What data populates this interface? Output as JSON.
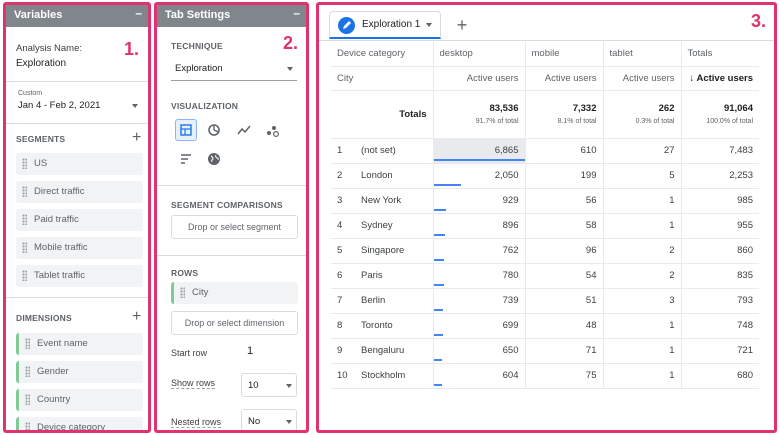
{
  "variables": {
    "title": "Variables",
    "minimize": "–",
    "analysis_label": "Analysis Name:",
    "analysis_name": "Exploration",
    "date_label": "Custom",
    "date_range": "Jan 4 - Feb 2, 2021",
    "segments_label": "SEGMENTS",
    "segments": [
      "US",
      "Direct traffic",
      "Paid traffic",
      "Mobile traffic",
      "Tablet traffic"
    ],
    "dimensions_label": "DIMENSIONS",
    "dimensions": [
      "Event name",
      "Gender",
      "Country",
      "Device category"
    ],
    "plus": "+"
  },
  "tab_settings": {
    "title": "Tab Settings",
    "minimize": "–",
    "technique_label": "TECHNIQUE",
    "technique_value": "Exploration",
    "visualization_label": "VISUALIZATION",
    "visualizations": [
      "table-icon",
      "donut-icon",
      "line-icon",
      "scatter-icon",
      "bar-icon",
      "geo-icon"
    ],
    "segment_comparisons_label": "SEGMENT COMPARISONS",
    "segment_drop": "Drop or select segment",
    "rows_label": "ROWS",
    "row_dimension": "City",
    "dimension_drop": "Drop or select dimension",
    "start_row_label": "Start row",
    "start_row_value": "1",
    "show_rows_label": "Show rows",
    "show_rows_value": "10",
    "nested_rows_label": "Nested rows",
    "nested_rows_value": "No"
  },
  "labels": {
    "one": "1.",
    "two": "2.",
    "three": "3."
  },
  "exploration": {
    "tab_label": "Exploration 1",
    "add_tab": "+",
    "dim_header": "Device category",
    "row_header": "City",
    "columns": [
      "desktop",
      "mobile",
      "tablet",
      "Totals"
    ],
    "metric_headers": [
      "Active users",
      "Active users",
      "Active users",
      "↓ Active users"
    ],
    "totals_label": "Totals",
    "totals": [
      {
        "value": "83,536",
        "pct": "91.7% of total"
      },
      {
        "value": "7,332",
        "pct": "8.1% of total"
      },
      {
        "value": "262",
        "pct": "0.3% of total"
      },
      {
        "value": "91,064",
        "pct": "100.0% of total"
      }
    ],
    "rows": [
      {
        "n": "1",
        "city": "(not set)",
        "vals": [
          "6,865",
          "610",
          "27",
          "7,483"
        ],
        "bar": 1.0
      },
      {
        "n": "2",
        "city": "London",
        "vals": [
          "2,050",
          "199",
          "5",
          "2,253"
        ],
        "bar": 0.299
      },
      {
        "n": "3",
        "city": "New York",
        "vals": [
          "929",
          "56",
          "1",
          "985"
        ],
        "bar": 0.135
      },
      {
        "n": "4",
        "city": "Sydney",
        "vals": [
          "896",
          "58",
          "1",
          "955"
        ],
        "bar": 0.131
      },
      {
        "n": "5",
        "city": "Singapore",
        "vals": [
          "762",
          "96",
          "2",
          "860"
        ],
        "bar": 0.111
      },
      {
        "n": "6",
        "city": "Paris",
        "vals": [
          "780",
          "54",
          "2",
          "835"
        ],
        "bar": 0.114
      },
      {
        "n": "7",
        "city": "Berlin",
        "vals": [
          "739",
          "51",
          "3",
          "793"
        ],
        "bar": 0.108
      },
      {
        "n": "8",
        "city": "Toronto",
        "vals": [
          "699",
          "48",
          "1",
          "748"
        ],
        "bar": 0.102
      },
      {
        "n": "9",
        "city": "Bengaluru",
        "vals": [
          "650",
          "71",
          "1",
          "721"
        ],
        "bar": 0.095
      },
      {
        "n": "10",
        "city": "Stockholm",
        "vals": [
          "604",
          "75",
          "1",
          "680"
        ],
        "bar": 0.088
      }
    ]
  }
}
